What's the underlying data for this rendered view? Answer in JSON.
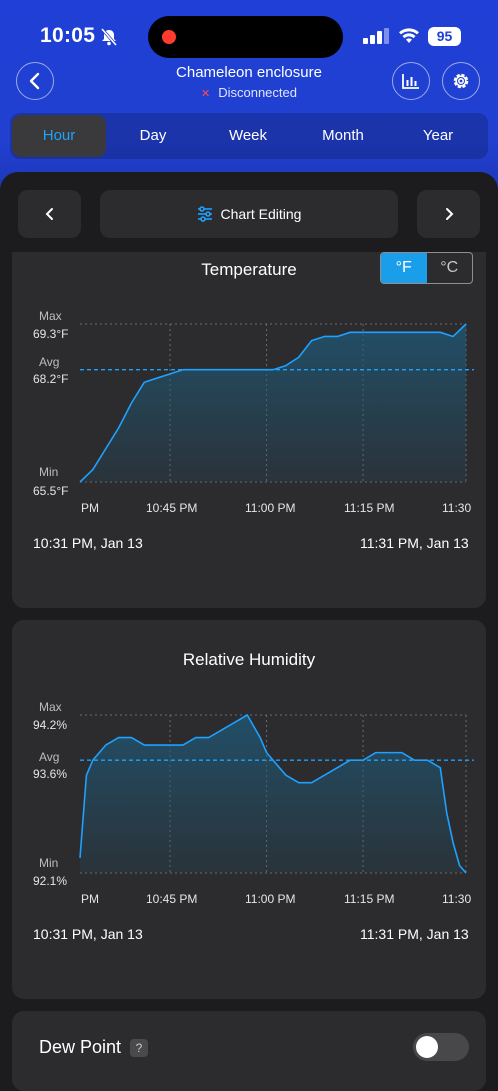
{
  "status_bar": {
    "time": "10:05",
    "battery": "95"
  },
  "header": {
    "title": "Chameleon enclosure",
    "status_text": "Disconnected",
    "status_mark": "✕"
  },
  "tabs": [
    {
      "label": "Hour",
      "active": true
    },
    {
      "label": "Day",
      "active": false
    },
    {
      "label": "Week",
      "active": false
    },
    {
      "label": "Month",
      "active": false
    },
    {
      "label": "Year",
      "active": false
    }
  ],
  "nav": {
    "prev": "‹",
    "next": "›",
    "edit_label": "Chart Editing"
  },
  "unit_toggle": {
    "fahrenheit": "°F",
    "celsius": "°C",
    "selected": "°F"
  },
  "colors": {
    "accent": "#1ea1ff",
    "line": "#1ea1ff",
    "header": "#1f3fd6"
  },
  "charts": {
    "temperature": {
      "title": "Temperature",
      "max_label": "Max",
      "max_value": "69.3°F",
      "avg_label": "Avg",
      "avg_value": "68.2°F",
      "min_label": "Min",
      "min_value": "65.5°F",
      "x_ticks": [
        "PM",
        "10:45 PM",
        "11:00 PM",
        "11:15 PM",
        "11:30"
      ],
      "range_start": "10:31 PM,  Jan 13",
      "range_end": "11:31 PM,  Jan 13"
    },
    "humidity": {
      "title": "Relative Humidity",
      "max_label": "Max",
      "max_value": "94.2%",
      "avg_label": "Avg",
      "avg_value": "93.6%",
      "min_label": "Min",
      "min_value": "92.1%",
      "x_ticks": [
        "PM",
        "10:45 PM",
        "11:00 PM",
        "11:15 PM",
        "11:30"
      ],
      "range_start": "10:31 PM,  Jan 13",
      "range_end": "11:31 PM,  Jan 13"
    }
  },
  "chart_data": [
    {
      "type": "area",
      "title": "Temperature",
      "ylim": [
        65.5,
        69.3
      ],
      "avg": 68.2,
      "x_minutes_after_1031pm": [
        0,
        2,
        4,
        6,
        8,
        10,
        12,
        14,
        16,
        18,
        20,
        22,
        24,
        26,
        28,
        30,
        32,
        34,
        36,
        38,
        40,
        42,
        44,
        46,
        48,
        50,
        52,
        54,
        56,
        58,
        60
      ],
      "values": [
        65.5,
        65.8,
        66.3,
        66.8,
        67.4,
        67.9,
        68.0,
        68.1,
        68.2,
        68.2,
        68.2,
        68.2,
        68.2,
        68.2,
        68.2,
        68.2,
        68.3,
        68.5,
        68.9,
        69.0,
        69.0,
        69.1,
        69.1,
        69.1,
        69.1,
        69.1,
        69.1,
        69.1,
        69.1,
        69.0,
        69.3
      ]
    },
    {
      "type": "area",
      "title": "Relative Humidity",
      "ylim": [
        92.1,
        94.2
      ],
      "avg": 93.6,
      "x_minutes_after_1031pm": [
        0,
        1,
        2,
        3,
        4,
        6,
        8,
        10,
        12,
        14,
        16,
        18,
        20,
        22,
        24,
        26,
        28,
        29,
        30,
        32,
        34,
        36,
        38,
        40,
        42,
        44,
        46,
        48,
        50,
        52,
        54,
        56,
        57,
        58,
        59,
        60
      ],
      "values": [
        92.3,
        93.4,
        93.6,
        93.7,
        93.8,
        93.9,
        93.9,
        93.8,
        93.8,
        93.8,
        93.8,
        93.9,
        93.9,
        94.0,
        94.1,
        94.2,
        93.9,
        93.7,
        93.6,
        93.4,
        93.3,
        93.3,
        93.4,
        93.5,
        93.6,
        93.6,
        93.7,
        93.7,
        93.7,
        93.6,
        93.6,
        93.5,
        92.9,
        92.5,
        92.2,
        92.1
      ]
    }
  ],
  "dew_point": {
    "label": "Dew Point",
    "help": "?",
    "enabled": false
  }
}
